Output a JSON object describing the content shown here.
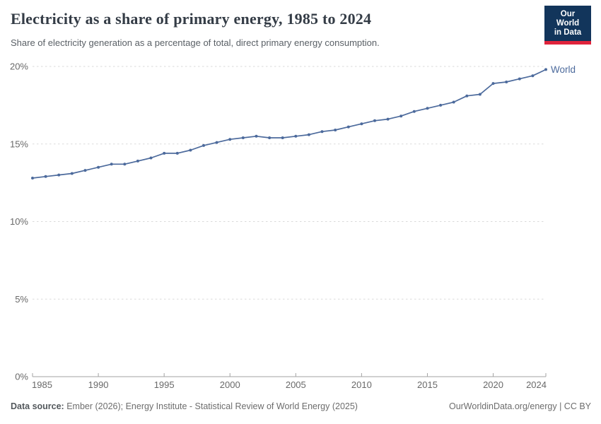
{
  "header": {
    "logo": {
      "line1": "Our World",
      "line2": "in Data"
    }
  },
  "chart_data": {
    "type": "line",
    "title": "Electricity as a share of primary energy, 1985 to 2024",
    "subtitle": "Share of electricity generation as a percentage of total, direct primary energy consumption.",
    "xlabel": "",
    "ylabel": "",
    "xlim": [
      1985,
      2024
    ],
    "ylim": [
      0,
      20
    ],
    "grid": "horizontal-dashed",
    "legend_position": "end-of-line-label",
    "xticks": [
      1985,
      1990,
      1995,
      2000,
      2005,
      2010,
      2015,
      2020,
      2024
    ],
    "yticks": [
      {
        "value": 0,
        "label": "0%"
      },
      {
        "value": 5,
        "label": "5%"
      },
      {
        "value": 10,
        "label": "10%"
      },
      {
        "value": 15,
        "label": "15%"
      },
      {
        "value": 20,
        "label": "20%"
      }
    ],
    "series": [
      {
        "name": "World",
        "color": "#4c6a9c",
        "x": [
          1985,
          1986,
          1987,
          1988,
          1989,
          1990,
          1991,
          1992,
          1993,
          1994,
          1995,
          1996,
          1997,
          1998,
          1999,
          2000,
          2001,
          2002,
          2003,
          2004,
          2005,
          2006,
          2007,
          2008,
          2009,
          2010,
          2011,
          2012,
          2013,
          2014,
          2015,
          2016,
          2017,
          2018,
          2019,
          2020,
          2021,
          2022,
          2023,
          2024
        ],
        "values": [
          12.8,
          12.9,
          13.0,
          13.1,
          13.3,
          13.5,
          13.7,
          13.7,
          13.9,
          14.1,
          14.4,
          14.4,
          14.6,
          14.9,
          15.1,
          15.3,
          15.4,
          15.5,
          15.4,
          15.4,
          15.5,
          15.6,
          15.8,
          15.9,
          16.1,
          16.3,
          16.5,
          16.6,
          16.8,
          17.1,
          17.3,
          17.5,
          17.7,
          18.1,
          18.2,
          18.9,
          19.0,
          19.2,
          19.4,
          19.8
        ]
      }
    ]
  },
  "footer": {
    "source_label": "Data source:",
    "source_text": "Ember (2026); Energy Institute - Statistical Review of World Energy (2025)",
    "link": "OurWorldinData.org/energy",
    "divider": " | ",
    "license": "CC BY"
  },
  "colors": {
    "line": "#4c6a9c",
    "gridline": "#dadada",
    "axis": "#a3a3a3",
    "tick_label": "#696969",
    "title": "#343c46",
    "subtitle": "#5a6066",
    "logo_bg": "#12355b",
    "logo_red": "#e0233c"
  }
}
